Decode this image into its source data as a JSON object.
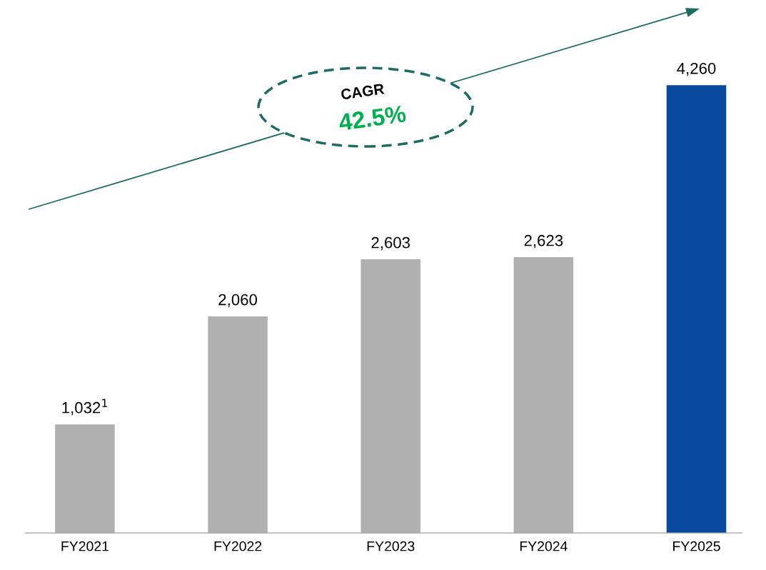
{
  "chart_data": {
    "type": "bar",
    "categories": [
      "FY2021",
      "FY2022",
      "FY2023",
      "FY2024",
      "FY2025"
    ],
    "values": [
      1032,
      2060,
      2603,
      2623,
      4260
    ],
    "colors": [
      "#b0b0b0",
      "#b0b0b0",
      "#b0b0b0",
      "#b0b0b0",
      "#0a4a9e"
    ],
    "value_labels": [
      "1,032$^{1}$",
      "2,060",
      "2,603",
      "2,623",
      "4,260"
    ],
    "tick_labels": "x",
    "grid": false,
    "legend": false,
    "annotations": [
      "CAGR",
      "42.5%"
    ]
  }
}
